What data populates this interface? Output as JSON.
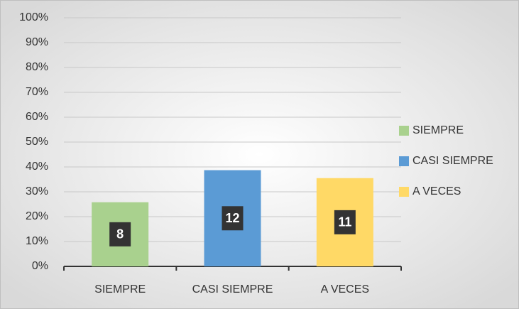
{
  "chart_data": {
    "type": "bar",
    "categories": [
      "SIEMPRE",
      "CASI SIEMPRE",
      "A VECES"
    ],
    "values": [
      25.8,
      38.7,
      35.5
    ],
    "data_labels": [
      8,
      12,
      11
    ],
    "colors": [
      "#a9d18e",
      "#5b9bd5",
      "#ffd966"
    ],
    "ylim": [
      0,
      100
    ],
    "yticks": [
      {
        "value": 0,
        "label": "0%"
      },
      {
        "value": 10,
        "label": "10%"
      },
      {
        "value": 20,
        "label": "20%"
      },
      {
        "value": 30,
        "label": "30%"
      },
      {
        "value": 40,
        "label": "40%"
      },
      {
        "value": 50,
        "label": "50%"
      },
      {
        "value": 60,
        "label": "60%"
      },
      {
        "value": 70,
        "label": "70%"
      },
      {
        "value": 80,
        "label": "80%"
      },
      {
        "value": 90,
        "label": "90%"
      },
      {
        "value": 100,
        "label": "100%"
      }
    ],
    "grid": true,
    "legend": "right"
  }
}
